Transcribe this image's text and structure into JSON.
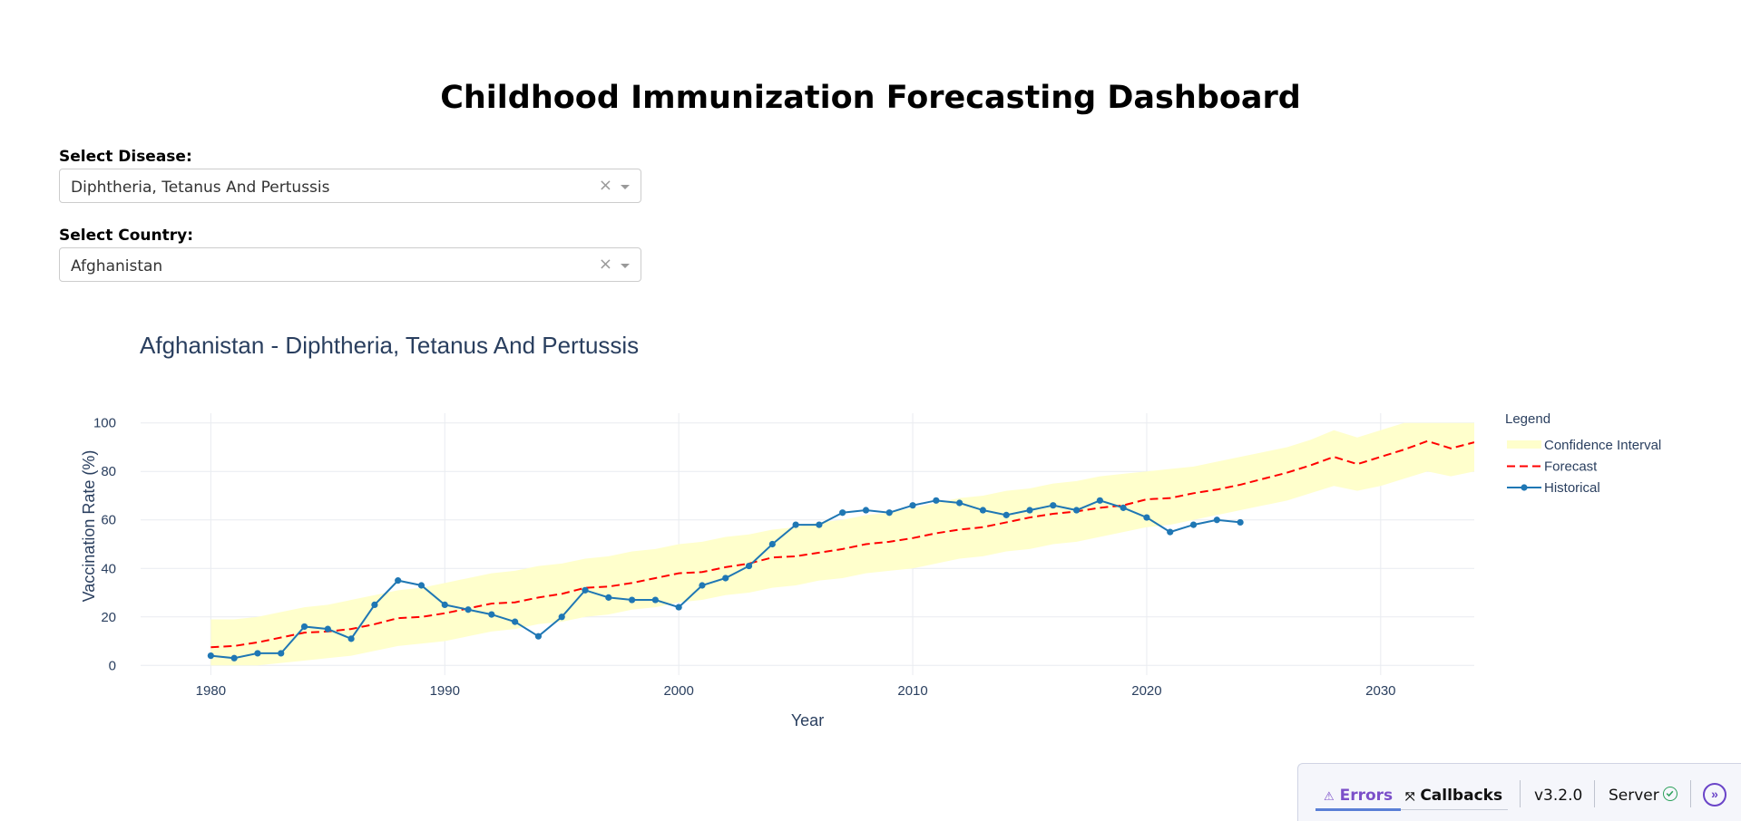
{
  "page": {
    "title": "Childhood Immunization Forecasting Dashboard"
  },
  "controls": {
    "disease_label": "Select Disease:",
    "disease_value": "Diphtheria, Tetanus And Pertussis",
    "country_label": "Select Country:",
    "country_value": "Afghanistan",
    "clear_glyph": "×"
  },
  "chart_data": {
    "type": "line",
    "title": "Afghanistan - Diphtheria, Tetanus And Pertussis",
    "xlabel": "Year",
    "ylabel": "Vaccination Rate (%)",
    "xlim": [
      1977,
      2034
    ],
    "ylim": [
      -4,
      104
    ],
    "x_ticks": [
      1980,
      1990,
      2000,
      2010,
      2020,
      2030
    ],
    "y_ticks": [
      0,
      20,
      40,
      60,
      80,
      100
    ],
    "grid": true,
    "legend": {
      "title": "Legend",
      "position": "top-right",
      "items": [
        "Confidence Interval",
        "Forecast",
        "Historical"
      ]
    },
    "series": [
      {
        "name": "Historical",
        "color": "#1f77b4",
        "style": "solid-markers",
        "x": [
          1980,
          1981,
          1982,
          1983,
          1984,
          1985,
          1986,
          1987,
          1988,
          1989,
          1990,
          1991,
          1992,
          1993,
          1994,
          1995,
          1996,
          1997,
          1998,
          1999,
          2000,
          2001,
          2002,
          2003,
          2004,
          2005,
          2006,
          2007,
          2008,
          2009,
          2010,
          2011,
          2012,
          2013,
          2014,
          2015,
          2016,
          2017,
          2018,
          2019,
          2020,
          2021,
          2022,
          2023,
          2024
        ],
        "y": [
          4,
          3,
          5,
          5,
          16,
          15,
          11,
          25,
          35,
          33,
          25,
          23,
          21,
          18,
          12,
          20,
          31,
          28,
          27,
          27,
          24,
          33,
          36,
          41,
          50,
          58,
          58,
          63,
          64,
          63,
          66,
          68,
          67,
          64,
          62,
          64,
          66,
          64,
          68,
          65,
          61,
          55,
          58,
          60,
          59
        ]
      },
      {
        "name": "Forecast",
        "color": "#ff0000",
        "style": "dashed",
        "x": [
          1980,
          1981,
          1982,
          1983,
          1984,
          1985,
          1986,
          1987,
          1988,
          1989,
          1990,
          1991,
          1992,
          1993,
          1994,
          1995,
          1996,
          1997,
          1998,
          1999,
          2000,
          2001,
          2002,
          2003,
          2004,
          2005,
          2006,
          2007,
          2008,
          2009,
          2010,
          2011,
          2012,
          2013,
          2014,
          2015,
          2016,
          2017,
          2018,
          2019,
          2020,
          2021,
          2022,
          2023,
          2024,
          2025,
          2026,
          2027,
          2028,
          2029,
          2030,
          2031,
          2032,
          2033,
          2034
        ],
        "y": [
          7.5,
          8,
          9.5,
          11.5,
          13.5,
          14,
          15,
          17,
          19.5,
          20,
          21.5,
          23.5,
          25.5,
          26,
          28,
          29.5,
          32,
          32.5,
          34,
          36,
          38,
          38.5,
          40.5,
          42,
          44.5,
          45,
          46.5,
          48,
          50,
          51,
          52.5,
          54.5,
          56,
          57,
          59,
          61,
          62.5,
          63.5,
          65,
          66,
          68.5,
          69,
          71,
          72.5,
          74.5,
          77,
          79.5,
          82.5,
          86,
          83,
          86,
          89,
          92.5,
          89.5,
          92
        ]
      },
      {
        "name": "Confidence Interval",
        "color": "#ffffcc",
        "style": "band",
        "x": [
          1980,
          1981,
          1982,
          1983,
          1984,
          1985,
          1986,
          1987,
          1988,
          1989,
          1990,
          1991,
          1992,
          1993,
          1994,
          1995,
          1996,
          1997,
          1998,
          1999,
          2000,
          2001,
          2002,
          2003,
          2004,
          2005,
          2006,
          2007,
          2008,
          2009,
          2010,
          2011,
          2012,
          2013,
          2014,
          2015,
          2016,
          2017,
          2018,
          2019,
          2020,
          2021,
          2022,
          2023,
          2024,
          2025,
          2026,
          2027,
          2028,
          2029,
          2030,
          2031,
          2032,
          2033,
          2034
        ],
        "lower": [
          0,
          0,
          0,
          1,
          2,
          3,
          4,
          6,
          8,
          9,
          10,
          12,
          14,
          15,
          17,
          18,
          20,
          21,
          23,
          24,
          26,
          27,
          29,
          30,
          32,
          33,
          35,
          36,
          38,
          39,
          40,
          42,
          44,
          45,
          47,
          48,
          50,
          51,
          53,
          55,
          57,
          58,
          60,
          62,
          64,
          66,
          68,
          71,
          74,
          72,
          74,
          77,
          80,
          78,
          80
        ],
        "upper": [
          19,
          19,
          20,
          22,
          24,
          25,
          27,
          29,
          31,
          32,
          34,
          36,
          38,
          39,
          41,
          42,
          44,
          45,
          47,
          48,
          50,
          51,
          53,
          54,
          56,
          57,
          59,
          60,
          62,
          63,
          65,
          67,
          69,
          70,
          72,
          73,
          75,
          76,
          78,
          79,
          80,
          81,
          82,
          84,
          86,
          88,
          90,
          93,
          97,
          94,
          97,
          100,
          100,
          100,
          100
        ]
      }
    ]
  },
  "debug_menu": {
    "errors_label": "Errors",
    "errors_icon": "warning-triangle-icon",
    "callbacks_label": "Callbacks",
    "callbacks_icon": "callback-graph-icon",
    "version": "v3.2.0",
    "server_label": "Server",
    "server_icon": "check-circle-icon",
    "toggle_icon": "double-chevron-right-icon",
    "accent": "#7b4fc9",
    "ok_color": "#2aa05a"
  }
}
